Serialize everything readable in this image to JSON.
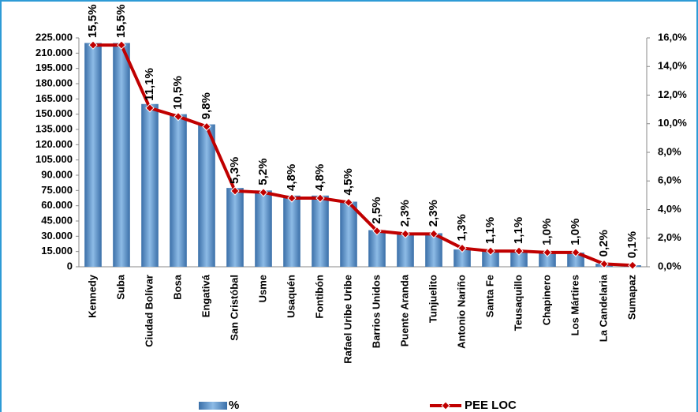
{
  "chart_data": {
    "type": "bar-line",
    "categories": [
      "Kennedy",
      "Suba",
      "Ciudad Bolívar",
      "Bosa",
      "Engativá",
      "San Cristóbal",
      "Usme",
      "Usaquén",
      "Fontibón",
      "Rafael Uribe Uribe",
      "Barrios Unidos",
      "Puente Aranda",
      "Tunjuelito",
      "Antonio Nariño",
      "Santa Fe",
      "Teusaquillo",
      "Chapinero",
      "Los Mártires",
      "La Candelaria",
      "Sumapaz"
    ],
    "series": [
      {
        "name": "%",
        "type": "bar",
        "color": "#5b9bd5",
        "values": [
          220000,
          220000,
          160000,
          150000,
          140000,
          77500,
          75000,
          70000,
          70000,
          64000,
          36000,
          33000,
          33000,
          17000,
          16000,
          16000,
          14000,
          14000,
          3000,
          1500
        ]
      },
      {
        "name": "PEE LOC",
        "type": "line",
        "axis": "y2",
        "color": "#c00000",
        "values": [
          15.5,
          15.5,
          11.1,
          10.5,
          9.8,
          5.3,
          5.2,
          4.8,
          4.8,
          4.5,
          2.5,
          2.3,
          2.3,
          1.3,
          1.1,
          1.1,
          1.0,
          1.0,
          0.2,
          0.1
        ],
        "value_labels": [
          "15,5%",
          "15,5%",
          "11,1%",
          "10,5%",
          "9,8%",
          "5,3%",
          "5,2%",
          "4,8%",
          "4,8%",
          "4,5%",
          "2,5%",
          "2,3%",
          "2,3%",
          "1,3%",
          "1,1%",
          "1,1%",
          "1,0%",
          "1,0%",
          "0,2%",
          "0,1%"
        ]
      }
    ],
    "ylim": [
      0,
      225000
    ],
    "yticks": [
      0,
      {
        "value": 15000,
        "label": "15.000"
      },
      {
        "value": 30000,
        "label": "30.000"
      },
      {
        "value": 45000,
        "label": "45.000"
      },
      {
        "value": 60000,
        "label": "60.000"
      },
      {
        "value": 75000,
        "label": "75.000"
      },
      {
        "value": 90000,
        "label": "90.000"
      },
      {
        "value": 105000,
        "label": "105.000"
      },
      {
        "value": 120000,
        "label": "120.000"
      },
      {
        "value": 135000,
        "label": "135.000"
      },
      {
        "value": 150000,
        "label": "150.000"
      },
      {
        "value": 165000,
        "label": "165.000"
      },
      {
        "value": 180000,
        "label": "180.000"
      },
      {
        "value": 195000,
        "label": "195.000"
      },
      {
        "value": 210000,
        "label": "210.000"
      },
      {
        "value": 225000,
        "label": "225.000"
      }
    ],
    "y2lim": [
      0,
      16
    ],
    "y2ticks": [
      {
        "value": 0,
        "label": "0,0%"
      },
      {
        "value": 2,
        "label": "2,0%"
      },
      {
        "value": 4,
        "label": "4,0%"
      },
      {
        "value": 6,
        "label": "6,0%"
      },
      {
        "value": 8,
        "label": "8,0%"
      },
      {
        "value": 10,
        "label": "10,0%"
      },
      {
        "value": 12,
        "label": "12,0%"
      },
      {
        "value": 14,
        "label": "14,0%"
      },
      {
        "value": 16,
        "label": "16,0%"
      }
    ],
    "grid": false
  }
}
